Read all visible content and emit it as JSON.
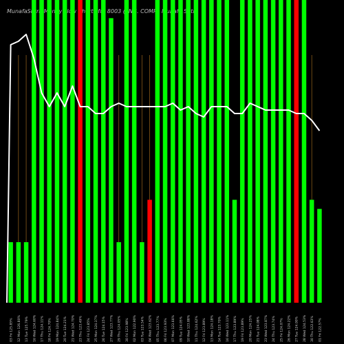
{
  "chart_data": {
    "type": "bar",
    "title": "MunafaSutra Money Flow Charts for 8003 (ENG. COMP.) Munafa Sutra",
    "colors": {
      "background": "#000000",
      "up": "#00ff00",
      "down": "#ff0000",
      "gridline": "#8a5a1a",
      "line": "#ffffff",
      "text": "#cfcfcf"
    },
    "categories": [
      "03 Fri 125.85%",
      "12 Mon 126.80%",
      "13 Tue 125.79%",
      "16 Wed 124.60%",
      "17 Thu 124.11%",
      "18 Fri 124.70%",
      "19 Mon 124.84%",
      "20 Tue 124.21%",
      "21 Wed 124.70%",
      "23 Thu 123.49%",
      "24 Fri 123.85%",
      "25 Mon 124.37%",
      "26 Tue 124.15%",
      "27 Wed 123.77%",
      "29 Thu 124.05%",
      "30 Fri 123.98%",
      "02 Mon 122.90%",
      "03 Tue 123.54%",
      "04 Wed 123.62%",
      "05 Thu 123.77%",
      "06 Fri 123.93%",
      "07 Mon 123.66%",
      "09 Tue 124.05%",
      "10 Wed 123.88%",
      "11 Thu 124.62%",
      "12 Fri 123.89%",
      "13 Mon 124.18%",
      "14 Tue 123.70%",
      "16 Wed 123.11%",
      "17 Thu 123.89%",
      "19 Fri 123.89%",
      "20 Mon 124.25%",
      "21 Tue 124.08%",
      "23 Wed 123.87%",
      "24 Thu 123.74%",
      "25 Fri 124.07%",
      "26 Mon 124.22%",
      "27 Tue 124.00%",
      "28 Wed 124.53%",
      "30 Thu 122.63%",
      "01 Fri 122.57%"
    ],
    "bars": [
      {
        "color": "up",
        "value": 0.2
      },
      {
        "color": "up",
        "value": 0.2
      },
      {
        "color": "up",
        "value": 0.2
      },
      {
        "color": "up",
        "value": 1.0
      },
      {
        "color": "up",
        "value": 1.0
      },
      {
        "color": "up",
        "value": 1.0
      },
      {
        "color": "up",
        "value": 1.0
      },
      {
        "color": "up",
        "value": 1.0
      },
      {
        "color": "up",
        "value": 1.0
      },
      {
        "color": "down",
        "value": 1.0
      },
      {
        "color": "up",
        "value": 1.0
      },
      {
        "color": "up",
        "value": 1.0
      },
      {
        "color": "up",
        "value": 1.0
      },
      {
        "color": "up",
        "value": 0.94
      },
      {
        "color": "up",
        "value": 0.2
      },
      {
        "color": "up",
        "value": 1.0
      },
      {
        "color": "up",
        "value": 1.0
      },
      {
        "color": "up",
        "value": 0.2
      },
      {
        "color": "down",
        "value": 0.34
      },
      {
        "color": "up",
        "value": 1.0
      },
      {
        "color": "up",
        "value": 1.0
      },
      {
        "color": "up",
        "value": 1.0
      },
      {
        "color": "up",
        "value": 1.0
      },
      {
        "color": "up",
        "value": 1.0
      },
      {
        "color": "up",
        "value": 1.0
      },
      {
        "color": "up",
        "value": 1.0
      },
      {
        "color": "up",
        "value": 1.0
      },
      {
        "color": "up",
        "value": 1.0
      },
      {
        "color": "up",
        "value": 1.0
      },
      {
        "color": "up",
        "value": 0.34
      },
      {
        "color": "up",
        "value": 1.0
      },
      {
        "color": "up",
        "value": 1.0
      },
      {
        "color": "up",
        "value": 1.0
      },
      {
        "color": "up",
        "value": 1.0
      },
      {
        "color": "up",
        "value": 1.0
      },
      {
        "color": "up",
        "value": 1.0
      },
      {
        "color": "up",
        "value": 1.0
      },
      {
        "color": "down",
        "value": 1.0
      },
      {
        "color": "up",
        "value": 1.0
      },
      {
        "color": "up",
        "value": 0.34
      },
      {
        "color": "up",
        "value": 0.31
      }
    ],
    "gridline_positions": [
      1,
      2,
      14,
      17,
      18,
      21,
      23,
      34,
      37,
      39
    ],
    "price_line": [
      0.13,
      0.12,
      0.1,
      0.17,
      0.27,
      0.31,
      0.27,
      0.31,
      0.25,
      0.31,
      0.31,
      0.33,
      0.33,
      0.31,
      0.3,
      0.31,
      0.31,
      0.31,
      0.31,
      0.31,
      0.31,
      0.3,
      0.32,
      0.31,
      0.33,
      0.34,
      0.31,
      0.31,
      0.31,
      0.33,
      0.33,
      0.3,
      0.31,
      0.32,
      0.32,
      0.32,
      0.32,
      0.33,
      0.33,
      0.35,
      0.38
    ],
    "price_line_start": 0.88,
    "ylim": [
      0,
      1
    ]
  }
}
